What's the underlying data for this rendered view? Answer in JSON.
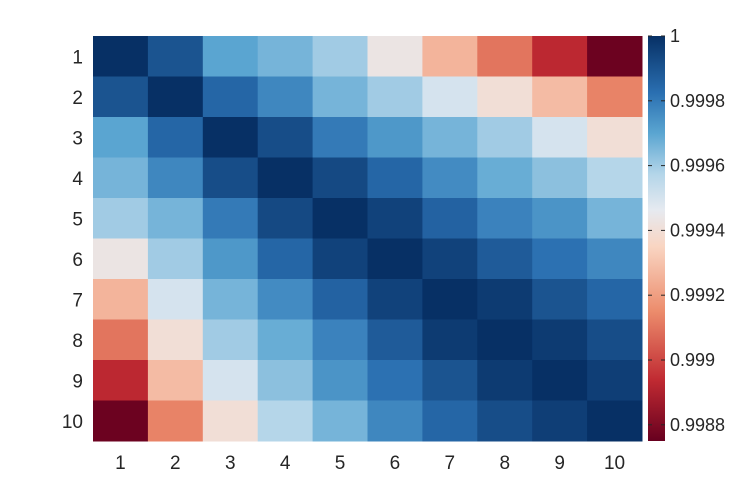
{
  "chart_data": {
    "type": "heatmap",
    "title": "",
    "xlabel": "",
    "ylabel": "",
    "x_categories": [
      "1",
      "2",
      "3",
      "4",
      "5",
      "6",
      "7",
      "8",
      "9",
      "10"
    ],
    "y_categories": [
      "1",
      "2",
      "3",
      "4",
      "5",
      "6",
      "7",
      "8",
      "9",
      "10"
    ],
    "values": [
      [
        1.0,
        0.9999,
        0.9997,
        0.99966,
        0.9996,
        0.99943,
        0.99926,
        0.9991,
        0.99893,
        0.99876
      ],
      [
        0.9999,
        1.0,
        0.99985,
        0.99977,
        0.99966,
        0.9996,
        0.9995,
        0.9994,
        0.99928,
        0.99913
      ],
      [
        0.9997,
        0.99985,
        1.0,
        0.99992,
        0.9998,
        0.99973,
        0.99966,
        0.9996,
        0.9995,
        0.9994
      ],
      [
        0.99966,
        0.99977,
        0.99992,
        1.0,
        0.99993,
        0.99985,
        0.99976,
        0.99968,
        0.99963,
        0.99957
      ],
      [
        0.9996,
        0.99966,
        0.9998,
        0.99993,
        1.0,
        0.99995,
        0.99986,
        0.99978,
        0.99974,
        0.99966
      ],
      [
        0.99943,
        0.9996,
        0.99973,
        0.99985,
        0.99995,
        1.0,
        0.99995,
        0.99988,
        0.99982,
        0.99977
      ],
      [
        0.99926,
        0.9995,
        0.99966,
        0.99976,
        0.99986,
        0.99995,
        1.0,
        0.99997,
        0.9999,
        0.99985
      ],
      [
        0.9991,
        0.9994,
        0.9996,
        0.99968,
        0.99978,
        0.99988,
        0.99997,
        1.0,
        0.99997,
        0.99992
      ],
      [
        0.99893,
        0.99928,
        0.9995,
        0.99963,
        0.99974,
        0.99982,
        0.9999,
        0.99997,
        1.0,
        0.99996
      ],
      [
        0.99876,
        0.99913,
        0.9994,
        0.99957,
        0.99966,
        0.99977,
        0.99985,
        0.99992,
        0.99996,
        1.0
      ]
    ],
    "colorbar": {
      "range": [
        0.99875,
        1.0
      ],
      "ticks": [
        "1",
        "0.9998",
        "0.9996",
        "0.9994",
        "0.9992",
        "0.999",
        "0.9988"
      ],
      "tick_values": [
        1.0,
        0.9998,
        0.9996,
        0.9994,
        0.9992,
        0.999,
        0.9988
      ],
      "colormap": "red-white-blue (diverging)"
    },
    "grid": false,
    "legend": "colorbar-right"
  }
}
